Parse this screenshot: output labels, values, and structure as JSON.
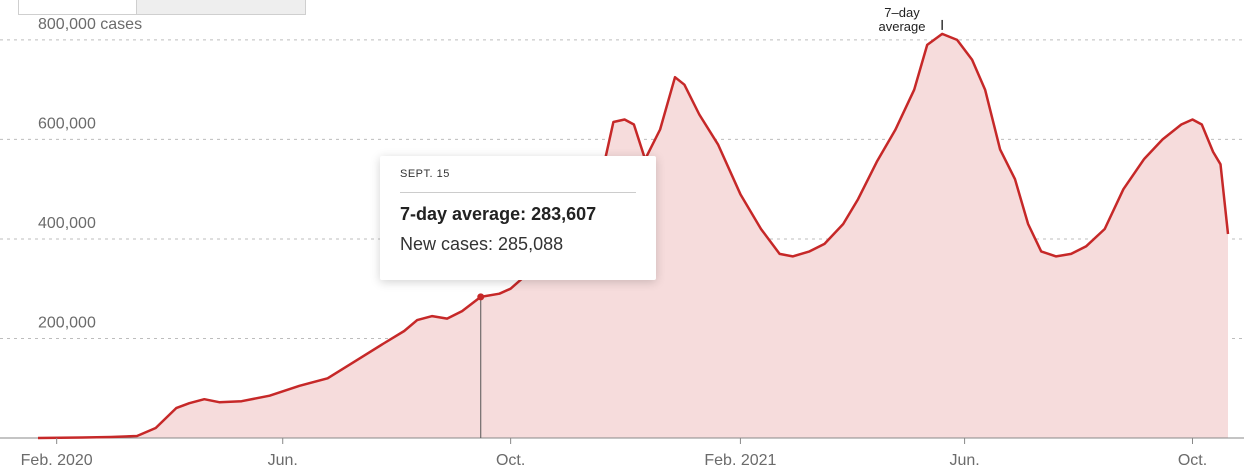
{
  "toggle": {
    "left_label": "",
    "right_label": ""
  },
  "tooltip": {
    "date": "SEPT. 15",
    "avg_label": "7-day average: 283,607",
    "new_label": "New cases: 285,088"
  },
  "annotation": {
    "line1": "7–day",
    "line2": "average"
  },
  "colors": {
    "line": "#c62828",
    "fill": "#f6dcdc",
    "grid": "#bdbdbd",
    "marker": "#555555"
  },
  "chart_data": {
    "type": "area",
    "ylim": [
      0,
      840000
    ],
    "xlim": [
      "2020-01-22",
      "2021-10-20"
    ],
    "y_ticks": [
      {
        "value": 800000,
        "label": "800,000 cases"
      },
      {
        "value": 600000,
        "label": "600,000"
      },
      {
        "value": 400000,
        "label": "400,000"
      },
      {
        "value": 200000,
        "label": "200,000"
      }
    ],
    "x_ticks": [
      {
        "date": "2020-02-01",
        "label": "Feb. 2020"
      },
      {
        "date": "2020-06-01",
        "label": "Jun."
      },
      {
        "date": "2020-10-01",
        "label": "Oct."
      },
      {
        "date": "2021-02-01",
        "label": "Feb. 2021"
      },
      {
        "date": "2021-06-01",
        "label": "Jun."
      },
      {
        "date": "2021-10-01",
        "label": "Oct."
      }
    ],
    "highlight": {
      "date": "2020-09-15",
      "value": 283607
    },
    "series": [
      {
        "points": [
          [
            "2020-01-22",
            0
          ],
          [
            "2020-02-15",
            1000
          ],
          [
            "2020-03-01",
            2000
          ],
          [
            "2020-03-15",
            4000
          ],
          [
            "2020-03-25",
            20000
          ],
          [
            "2020-04-05",
            60000
          ],
          [
            "2020-04-12",
            70000
          ],
          [
            "2020-04-20",
            78000
          ],
          [
            "2020-04-28",
            72000
          ],
          [
            "2020-05-10",
            74000
          ],
          [
            "2020-05-25",
            85000
          ],
          [
            "2020-06-10",
            105000
          ],
          [
            "2020-06-25",
            120000
          ],
          [
            "2020-07-10",
            155000
          ],
          [
            "2020-07-25",
            190000
          ],
          [
            "2020-08-05",
            215000
          ],
          [
            "2020-08-12",
            237000
          ],
          [
            "2020-08-20",
            245000
          ],
          [
            "2020-08-28",
            240000
          ],
          [
            "2020-09-05",
            255000
          ],
          [
            "2020-09-15",
            283607
          ],
          [
            "2020-09-25",
            290000
          ],
          [
            "2020-10-01",
            300000
          ],
          [
            "2020-10-10",
            330000
          ],
          [
            "2020-10-20",
            370000
          ],
          [
            "2020-11-01",
            430000
          ],
          [
            "2020-11-10",
            500000
          ],
          [
            "2020-11-20",
            550000
          ],
          [
            "2020-11-25",
            635000
          ],
          [
            "2020-12-01",
            640000
          ],
          [
            "2020-12-06",
            630000
          ],
          [
            "2020-12-12",
            560000
          ],
          [
            "2020-12-20",
            620000
          ],
          [
            "2020-12-28",
            725000
          ],
          [
            "2021-01-02",
            710000
          ],
          [
            "2021-01-10",
            650000
          ],
          [
            "2021-01-20",
            590000
          ],
          [
            "2021-02-01",
            490000
          ],
          [
            "2021-02-12",
            420000
          ],
          [
            "2021-02-22",
            370000
          ],
          [
            "2021-03-01",
            365000
          ],
          [
            "2021-03-10",
            375000
          ],
          [
            "2021-03-18",
            390000
          ],
          [
            "2021-03-28",
            430000
          ],
          [
            "2021-04-05",
            480000
          ],
          [
            "2021-04-15",
            555000
          ],
          [
            "2021-04-25",
            620000
          ],
          [
            "2021-05-05",
            700000
          ],
          [
            "2021-05-12",
            790000
          ],
          [
            "2021-05-20",
            812000
          ],
          [
            "2021-05-28",
            800000
          ],
          [
            "2021-06-05",
            760000
          ],
          [
            "2021-06-12",
            700000
          ],
          [
            "2021-06-20",
            580000
          ],
          [
            "2021-06-28",
            520000
          ],
          [
            "2021-07-05",
            430000
          ],
          [
            "2021-07-12",
            375000
          ],
          [
            "2021-07-20",
            365000
          ],
          [
            "2021-07-28",
            370000
          ],
          [
            "2021-08-05",
            385000
          ],
          [
            "2021-08-15",
            420000
          ],
          [
            "2021-08-25",
            500000
          ],
          [
            "2021-09-05",
            560000
          ],
          [
            "2021-09-15",
            600000
          ],
          [
            "2021-09-25",
            630000
          ],
          [
            "2021-10-01",
            640000
          ],
          [
            "2021-10-06",
            630000
          ],
          [
            "2021-10-12",
            575000
          ],
          [
            "2021-10-16",
            550000
          ],
          [
            "2021-10-20",
            410000
          ]
        ]
      }
    ]
  }
}
